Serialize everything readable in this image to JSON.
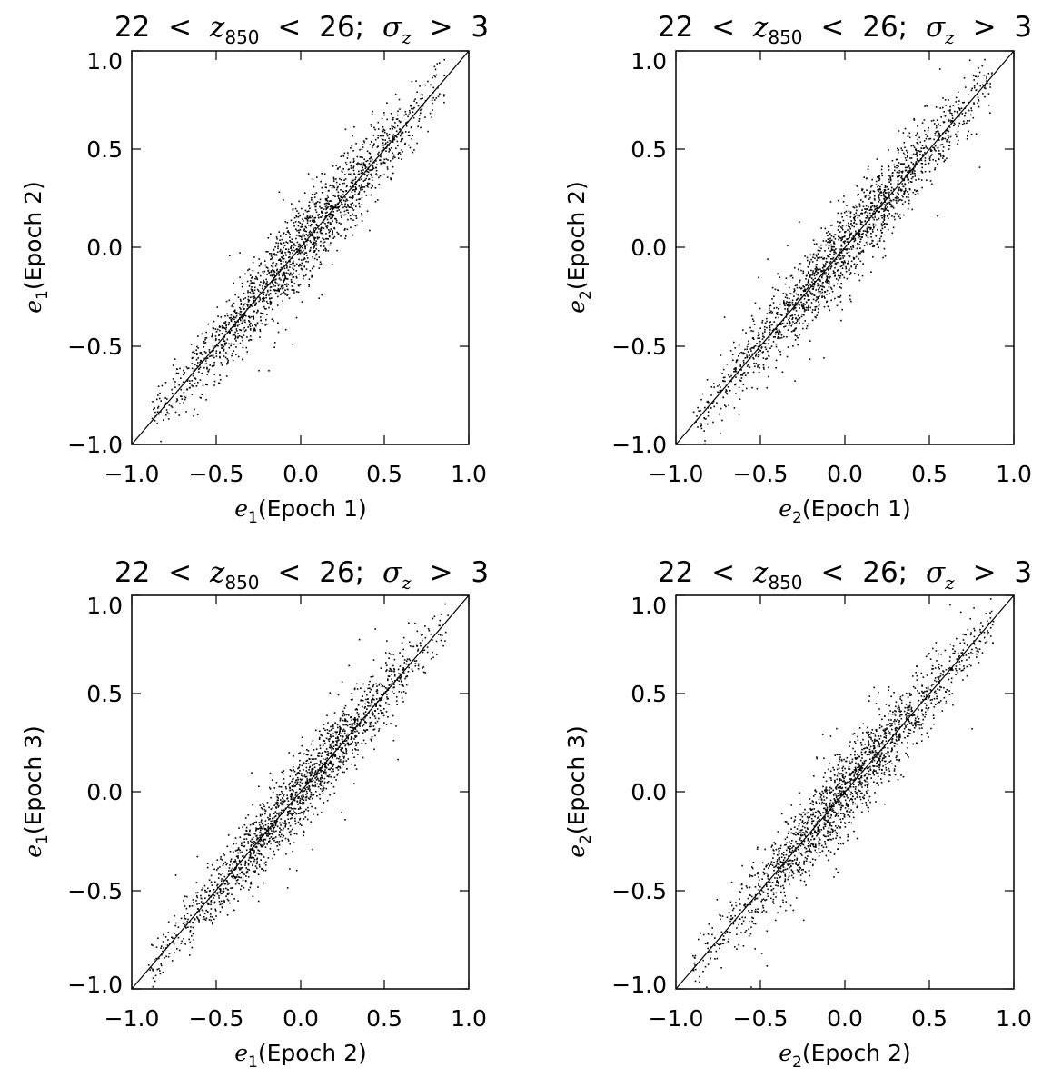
{
  "chart_data": [
    {
      "type": "scatter",
      "title": {
        "lower": "22",
        "lt1": "<",
        "var": "z",
        "var_sub": "850",
        "lt2": "<",
        "upper": "26;",
        "sigma": "σ",
        "sigma_sub": "z",
        "gt": ">",
        "threshold": "3"
      },
      "xlabel": {
        "var": "e",
        "sub": "1",
        "text": "(Epoch 1)"
      },
      "ylabel": {
        "var": "e",
        "sub": "1",
        "text": "(Epoch 2)"
      },
      "xlim": [
        -1.0,
        1.0
      ],
      "ylim": [
        -1.0,
        1.0
      ],
      "xticks": [
        "−1.0",
        "−0.5",
        "0.0",
        "0.5",
        "1.0"
      ],
      "yticks": [
        "−1.0",
        "−0.5",
        "0.0",
        "0.5",
        "1.0"
      ],
      "reference_line": {
        "slope": 1,
        "intercept": 0
      },
      "grid": false,
      "scatter": {
        "n_points": 1800,
        "sigma": 0.11,
        "x_range": [
          -0.88,
          0.86
        ],
        "seed": 11
      }
    },
    {
      "type": "scatter",
      "title": {
        "lower": "22",
        "lt1": "<",
        "var": "z",
        "var_sub": "850",
        "lt2": "<",
        "upper": "26;",
        "sigma": "σ",
        "sigma_sub": "z",
        "gt": ">",
        "threshold": "3"
      },
      "xlabel": {
        "var": "e",
        "sub": "2",
        "text": "(Epoch 1)"
      },
      "ylabel": {
        "var": "e",
        "sub": "2",
        "text": "(Epoch 2)"
      },
      "xlim": [
        -1.0,
        1.0
      ],
      "ylim": [
        -1.0,
        1.0
      ],
      "xticks": [
        "−1.0",
        "−0.5",
        "0.0",
        "0.5",
        "1.0"
      ],
      "yticks": [
        "−1.0",
        "−0.5",
        "0.0",
        "0.5",
        "1.0"
      ],
      "reference_line": {
        "slope": 1,
        "intercept": 0
      },
      "grid": false,
      "scatter": {
        "n_points": 1800,
        "sigma": 0.105,
        "x_range": [
          -0.9,
          0.88
        ],
        "seed": 23
      }
    },
    {
      "type": "scatter",
      "title": {
        "lower": "22",
        "lt1": "<",
        "var": "z",
        "var_sub": "850",
        "lt2": "<",
        "upper": "26;",
        "sigma": "σ",
        "sigma_sub": "z",
        "gt": ">",
        "threshold": "3"
      },
      "xlabel": {
        "var": "e",
        "sub": "1",
        "text": "(Epoch 2)"
      },
      "ylabel": {
        "var": "e",
        "sub": "1",
        "text": "(Epoch 3)"
      },
      "xlim": [
        -1.0,
        1.0
      ],
      "ylim": [
        -1.0,
        1.0
      ],
      "xticks": [
        "−1.0",
        "−0.5",
        "0.0",
        "0.5",
        "1.0"
      ],
      "yticks": [
        "−1.0",
        "−0.5",
        "0.0",
        "0.5",
        "1.0"
      ],
      "reference_line": {
        "slope": 1,
        "intercept": 0
      },
      "grid": false,
      "scatter": {
        "n_points": 1800,
        "sigma": 0.1,
        "x_range": [
          -0.9,
          0.88
        ],
        "seed": 37
      }
    },
    {
      "type": "scatter",
      "title": {
        "lower": "22",
        "lt1": "<",
        "var": "z",
        "var_sub": "850",
        "lt2": "<",
        "upper": "26;",
        "sigma": "σ",
        "sigma_sub": "z",
        "gt": ">",
        "threshold": "3"
      },
      "xlabel": {
        "var": "e",
        "sub": "2",
        "text": "(Epoch 2)"
      },
      "ylabel": {
        "var": "e",
        "sub": "2",
        "text": "(Epoch 3)"
      },
      "xlim": [
        -1.0,
        1.0
      ],
      "ylim": [
        -1.0,
        1.0
      ],
      "xticks": [
        "−1.0",
        "−0.5",
        "0.0",
        "0.5",
        "1.0"
      ],
      "yticks": [
        "−1.0",
        "−0.5",
        "0.0",
        "0.5",
        "1.0"
      ],
      "reference_line": {
        "slope": 1,
        "intercept": 0
      },
      "grid": false,
      "scatter": {
        "n_points": 1800,
        "sigma": 0.11,
        "x_range": [
          -0.9,
          0.88
        ],
        "seed": 53
      }
    }
  ]
}
